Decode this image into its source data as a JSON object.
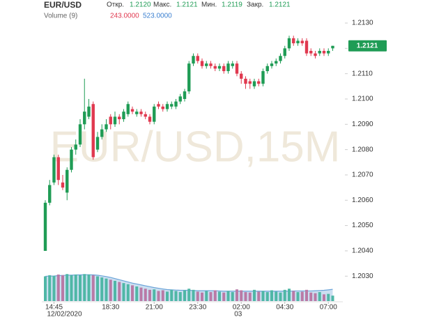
{
  "header": {
    "symbol": "EUR/USD",
    "ohlc": [
      {
        "label": "Откр.",
        "value": "1.2120"
      },
      {
        "label": "Макс.",
        "value": "1.2121"
      },
      {
        "label": "Мин.",
        "value": "1.2119"
      },
      {
        "label": "Закр.",
        "value": "1.2121"
      }
    ],
    "volume_title": "Volume (9)",
    "volume_value": "243.0000",
    "volume_ma": "523.0000"
  },
  "chart_data": {
    "type": "candlestick",
    "watermark": "EUR/USD,15M",
    "categories": [
      null,
      null,
      "14:45",
      null,
      null,
      null,
      null,
      null,
      null,
      null,
      null,
      null,
      null,
      null,
      null,
      "18:30",
      null,
      null,
      null,
      null,
      null,
      null,
      null,
      null,
      null,
      "21:00",
      null,
      null,
      null,
      null,
      null,
      null,
      null,
      null,
      null,
      "23:30",
      null,
      null,
      null,
      null,
      null,
      null,
      null,
      null,
      null,
      "02:00",
      null,
      null,
      null,
      null,
      null,
      null,
      null,
      null,
      null,
      "04:30",
      null,
      null,
      null,
      null,
      null,
      null,
      null,
      null,
      null,
      "07:00",
      null
    ],
    "date_labels": [
      null,
      null,
      "12/02/2020",
      null,
      null,
      null,
      null,
      null,
      null,
      null,
      null,
      null,
      null,
      null,
      null,
      null,
      null,
      null,
      null,
      null,
      null,
      null,
      null,
      null,
      null,
      null,
      null,
      null,
      null,
      null,
      null,
      null,
      null,
      null,
      null,
      null,
      null,
      null,
      null,
      null,
      null,
      null,
      null,
      null,
      null,
      "03",
      null,
      null,
      null,
      null,
      null,
      null,
      null,
      null,
      null,
      null,
      null,
      null,
      null,
      null,
      null,
      null,
      null,
      null,
      null,
      null,
      null
    ],
    "open": [
      1.204,
      1.2059,
      1.2067,
      1.2077,
      1.2067,
      1.2063,
      1.2072,
      1.208,
      1.2082,
      1.209,
      1.2093,
      1.2098,
      1.208,
      1.2085,
      1.2088,
      1.2093,
      1.209,
      1.2093,
      1.2092,
      1.2094,
      1.2096,
      1.2094,
      1.2095,
      1.2094,
      1.2093,
      1.2091,
      1.2098,
      1.2097,
      1.2096,
      1.2097,
      1.2097,
      1.2099,
      1.21,
      1.2103,
      1.2114,
      1.2117,
      1.2115,
      1.2113,
      1.2114,
      1.2113,
      1.2112,
      1.2113,
      1.2111,
      1.2113,
      1.2114,
      1.211,
      1.2108,
      1.2107,
      1.2105,
      1.2107,
      1.2106,
      1.2111,
      1.2113,
      1.2114,
      1.2115,
      1.2117,
      1.212,
      1.2124,
      1.2122,
      1.2123,
      1.2123,
      1.2119,
      1.2118,
      1.2118,
      1.2119,
      1.2118,
      1.212
    ],
    "high": [
      1.206,
      1.2068,
      1.2078,
      1.2078,
      1.207,
      1.2073,
      1.2081,
      1.2084,
      1.2092,
      1.2108,
      1.21,
      1.2099,
      1.2087,
      1.209,
      1.2092,
      1.2094,
      1.2095,
      1.2094,
      1.2096,
      1.2099,
      1.2097,
      1.2096,
      1.2096,
      1.2095,
      1.2094,
      1.2098,
      1.2099,
      1.2098,
      1.2099,
      1.2099,
      1.21,
      1.2102,
      1.2104,
      1.2115,
      1.2118,
      1.2118,
      1.2116,
      1.2115,
      1.2115,
      1.2114,
      1.2114,
      1.2114,
      1.2115,
      1.2115,
      1.2115,
      1.2111,
      1.2109,
      1.2108,
      1.2108,
      1.2108,
      1.2112,
      1.2114,
      1.2115,
      1.2116,
      1.2118,
      1.2121,
      1.2125,
      1.2125,
      1.2124,
      1.2124,
      1.2124,
      1.212,
      1.2119,
      1.212,
      1.212,
      1.212,
      1.2121
    ],
    "low": [
      1.204,
      1.2058,
      1.2066,
      1.2066,
      1.2064,
      1.206,
      1.2071,
      1.2078,
      1.2081,
      1.2088,
      1.2092,
      1.2076,
      1.2079,
      1.2084,
      1.2087,
      1.2088,
      1.2089,
      1.209,
      1.2091,
      1.2093,
      1.2094,
      1.2093,
      1.2093,
      1.2092,
      1.209,
      1.209,
      1.2096,
      1.2095,
      1.2095,
      1.2096,
      1.2096,
      1.2098,
      1.2099,
      1.2102,
      1.2113,
      1.2114,
      1.2112,
      1.2112,
      1.2112,
      1.2111,
      1.2111,
      1.211,
      1.211,
      1.2112,
      1.2109,
      1.2106,
      1.2104,
      1.2104,
      1.2104,
      1.2105,
      1.2105,
      1.211,
      1.2112,
      1.2113,
      1.2114,
      1.2116,
      1.2119,
      1.2121,
      1.2121,
      1.2121,
      1.2117,
      1.2117,
      1.2116,
      1.2117,
      1.2117,
      1.2117,
      1.2119
    ],
    "close": [
      1.2059,
      1.2066,
      1.2077,
      1.2068,
      1.2065,
      1.2072,
      1.208,
      1.2082,
      1.209,
      1.2095,
      1.2097,
      1.2077,
      1.2085,
      1.2088,
      1.209,
      1.209,
      1.2093,
      1.2092,
      1.2095,
      1.2098,
      1.2095,
      1.2095,
      1.2094,
      1.2093,
      1.2091,
      1.2097,
      1.2097,
      1.2096,
      1.2098,
      1.2098,
      1.2099,
      1.2101,
      1.2103,
      1.2114,
      1.2117,
      1.2115,
      1.2113,
      1.2114,
      1.2113,
      1.2112,
      1.2113,
      1.2111,
      1.2114,
      1.2114,
      1.211,
      1.2108,
      1.2106,
      1.2106,
      1.2107,
      1.2106,
      1.2111,
      1.2113,
      1.2114,
      1.2115,
      1.2117,
      1.212,
      1.2124,
      1.2122,
      1.2123,
      1.2122,
      1.2118,
      1.2118,
      1.2117,
      1.2119,
      1.2118,
      1.2119,
      1.2121
    ],
    "up_color": "#1f9c55",
    "down_color": "#e0394f",
    "ylim": [
      1.20207,
      1.21391
    ],
    "yticks": [
      {
        "value": 1.203,
        "label": "1.2030"
      },
      {
        "value": 1.204,
        "label": "1.2040"
      },
      {
        "value": 1.205,
        "label": "1.2050"
      },
      {
        "value": 1.206,
        "label": "1.2060"
      },
      {
        "value": 1.207,
        "label": "1.2070"
      },
      {
        "value": 1.208,
        "label": "1.2080"
      },
      {
        "value": 1.209,
        "label": "1.2090"
      },
      {
        "value": 1.21,
        "label": "1.2100"
      },
      {
        "value": 1.211,
        "label": "1.2110"
      },
      {
        "value": 1.212,
        "label": "1.2120"
      },
      {
        "value": 1.213,
        "label": "1.2130"
      }
    ],
    "last_price_label": "1.2121",
    "volume": {
      "values": [
        1100,
        1150,
        1120,
        1180,
        1150,
        1200,
        1150,
        1180,
        1150,
        1200,
        1180,
        1150,
        1100,
        1050,
        1000,
        950,
        900,
        850,
        800,
        750,
        700,
        650,
        600,
        550,
        500,
        520,
        450,
        480,
        420,
        500,
        450,
        400,
        480,
        550,
        500,
        420,
        380,
        450,
        400,
        480,
        420,
        380,
        450,
        400,
        520,
        480,
        400,
        380,
        500,
        420,
        450,
        400,
        480,
        420,
        380,
        500,
        550,
        450,
        400,
        420,
        500,
        380,
        350,
        400,
        300,
        320,
        243
      ],
      "ma": [
        1100,
        1110,
        1115,
        1130,
        1140,
        1150,
        1155,
        1160,
        1165,
        1170,
        1170,
        1165,
        1150,
        1120,
        1090,
        1050,
        1000,
        950,
        900,
        850,
        800,
        760,
        720,
        680,
        640,
        600,
        570,
        540,
        510,
        500,
        490,
        480,
        480,
        480,
        470,
        460,
        460,
        460,
        460,
        460,
        450,
        440,
        440,
        440,
        440,
        440,
        440,
        440,
        440,
        440,
        440,
        440,
        440,
        440,
        440,
        440,
        440,
        450,
        450,
        450,
        450,
        450,
        460,
        470,
        480,
        500,
        523
      ],
      "ylim": [
        0,
        1300
      ],
      "up_color": "#4fb7a6",
      "down_color": "#b97aa6",
      "ma_color": "#6aa3d8"
    }
  }
}
